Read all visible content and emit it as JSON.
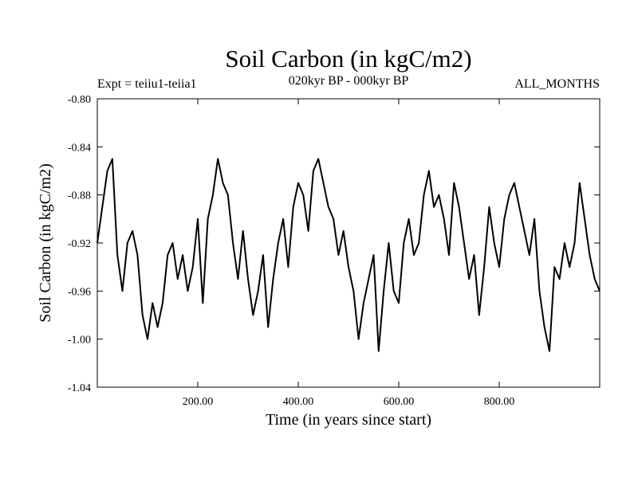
{
  "chart_data": {
    "type": "line",
    "title": "Soil Carbon (in kgC/m2)",
    "subtitle": "020kyr BP - 000kyr BP",
    "left_annotation": "Expt = teiiu1-teiia1",
    "right_annotation": "ALL_MONTHS",
    "xlabel": "Time (in years since start)",
    "ylabel": "Soil Carbon (in kgC/m2)",
    "xlim": [
      0,
      1000
    ],
    "ylim": [
      -1.04,
      -0.8
    ],
    "x_ticks": [
      200,
      400,
      600,
      800
    ],
    "x_tick_labels": [
      "200.00",
      "400.00",
      "600.00",
      "800.00"
    ],
    "y_ticks": [
      -0.8,
      -0.84,
      -0.88,
      -0.92,
      -0.96,
      -1.0,
      -1.04
    ],
    "y_tick_labels": [
      "-0.80",
      "-0.84",
      "-0.88",
      "-0.92",
      "-0.96",
      "-1.00",
      "-1.04"
    ],
    "grid": false,
    "line_color": "#000000",
    "series": [
      {
        "x": [
          0,
          10,
          20,
          30,
          40,
          50,
          60,
          70,
          80,
          90,
          100,
          110,
          120,
          130,
          140,
          150,
          160,
          170,
          180,
          190,
          200,
          210,
          220,
          230,
          240,
          250,
          260,
          270,
          280,
          290,
          300,
          310,
          320,
          330,
          340,
          350,
          360,
          370,
          380,
          390,
          400,
          410,
          420,
          430,
          440,
          450,
          460,
          470,
          480,
          490,
          500,
          510,
          520,
          530,
          540,
          550,
          560,
          570,
          580,
          590,
          600,
          610,
          620,
          630,
          640,
          650,
          660,
          670,
          680,
          690,
          700,
          710,
          720,
          730,
          740,
          750,
          760,
          770,
          780,
          790,
          800,
          810,
          820,
          830,
          840,
          850,
          860,
          870,
          880,
          890,
          900,
          910,
          920,
          930,
          940,
          950,
          960,
          970,
          980,
          990,
          1000
        ],
        "y": [
          -0.92,
          -0.89,
          -0.86,
          -0.85,
          -0.93,
          -0.96,
          -0.92,
          -0.91,
          -0.93,
          -0.98,
          -1.0,
          -0.97,
          -0.99,
          -0.97,
          -0.93,
          -0.92,
          -0.95,
          -0.93,
          -0.96,
          -0.94,
          -0.9,
          -0.97,
          -0.9,
          -0.88,
          -0.85,
          -0.87,
          -0.88,
          -0.92,
          -0.95,
          -0.91,
          -0.95,
          -0.98,
          -0.96,
          -0.93,
          -0.99,
          -0.95,
          -0.92,
          -0.9,
          -0.94,
          -0.89,
          -0.87,
          -0.88,
          -0.91,
          -0.86,
          -0.85,
          -0.87,
          -0.89,
          -0.9,
          -0.93,
          -0.91,
          -0.94,
          -0.96,
          -1.0,
          -0.97,
          -0.95,
          -0.93,
          -1.01,
          -0.96,
          -0.92,
          -0.96,
          -0.97,
          -0.92,
          -0.9,
          -0.93,
          -0.92,
          -0.88,
          -0.86,
          -0.89,
          -0.88,
          -0.9,
          -0.93,
          -0.87,
          -0.89,
          -0.92,
          -0.95,
          -0.93,
          -0.98,
          -0.94,
          -0.89,
          -0.92,
          -0.94,
          -0.9,
          -0.88,
          -0.87,
          -0.89,
          -0.91,
          -0.93,
          -0.9,
          -0.96,
          -0.99,
          -1.01,
          -0.94,
          -0.95,
          -0.92,
          -0.94,
          -0.92,
          -0.87,
          -0.9,
          -0.93,
          -0.95,
          -0.96
        ]
      }
    ]
  }
}
